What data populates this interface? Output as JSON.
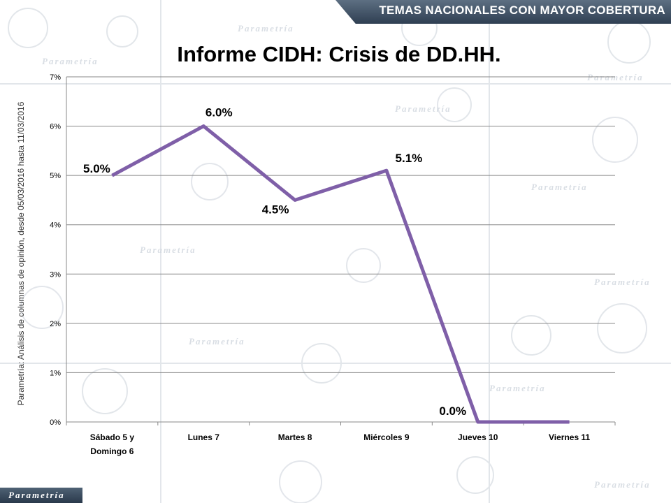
{
  "banner": {
    "text": "TEMAS NACIONALES CON MAYOR COBERTURA"
  },
  "source_note": "Parametría: Análisis de columnas de opinión, desde 05/03/2016 hasta 11/03/2016",
  "logo": {
    "text": "Parametría"
  },
  "watermark": {
    "text": "Parametría"
  },
  "colors": {
    "line": "#7f5fa8",
    "grid": "#888888",
    "banner": "#3e4f62"
  },
  "chart_data": {
    "type": "line",
    "title": "Informe CIDH: Crisis de DD.HH.",
    "categories": [
      "Sábado 5 y\nDomingo 6",
      "Lunes 7",
      "Martes 8",
      "Miércoles 9",
      "Jueves 10",
      "Viernes 11"
    ],
    "values": [
      5.0,
      6.0,
      4.5,
      5.1,
      0.0,
      0.0
    ],
    "data_labels": [
      "5.0%",
      "6.0%",
      "4.5%",
      "5.1%",
      "0.0%",
      ""
    ],
    "y_ticks": [
      "0%",
      "1%",
      "2%",
      "3%",
      "4%",
      "5%",
      "6%",
      "7%"
    ],
    "ylim": [
      0,
      7
    ],
    "grid": true,
    "legend": "none"
  }
}
